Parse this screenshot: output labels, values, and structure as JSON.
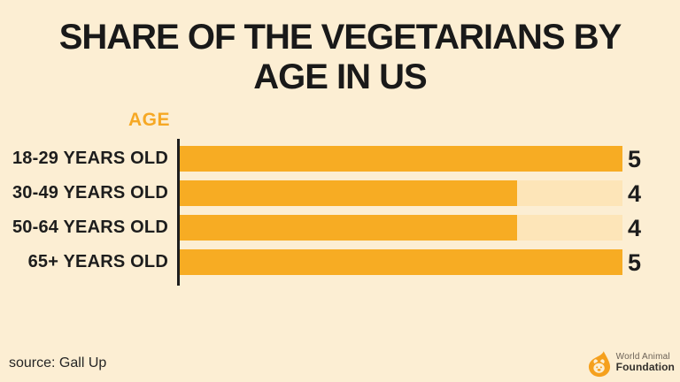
{
  "title": {
    "line1": "SHARE OF THE VEGETARIANS BY",
    "line2": "AGE IN US"
  },
  "chart_data": {
    "type": "bar",
    "orientation": "horizontal",
    "title": "Share of the vegetarians by age in US",
    "axis_label": "AGE",
    "categories": [
      "18-29 YEARS OLD",
      "30-49 YEARS OLD",
      "50-64 YEARS OLD",
      "65+ YEARS OLD"
    ],
    "values": [
      5,
      4,
      4,
      5
    ],
    "xlim": [
      0,
      5
    ],
    "bar_width_pct": [
      100,
      76.2,
      76.2,
      100
    ],
    "legend": "none",
    "grid": "off",
    "colors": {
      "background": "#FCEED3",
      "bar": "#F7AC23",
      "track": "#FDE5B8",
      "axis": "#1D1D1D",
      "accent_orange": "#F6A824",
      "text_dark": "#191919"
    }
  },
  "footer": {
    "source": "source: Gall Up",
    "logo_line1": "World Animal",
    "logo_line2": "Foundation"
  }
}
